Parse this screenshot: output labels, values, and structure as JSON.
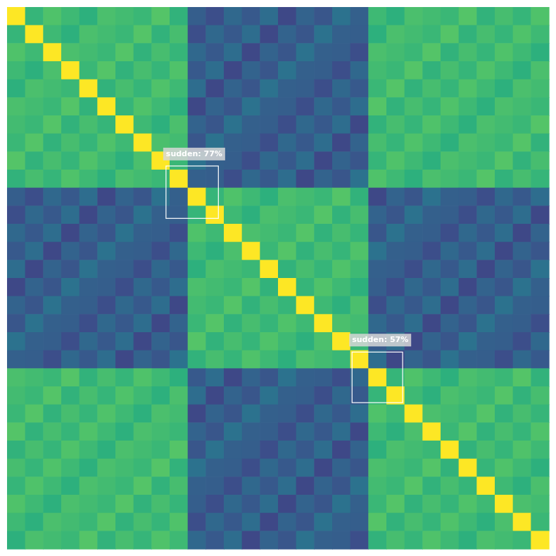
{
  "chart_data": {
    "type": "heatmap",
    "tick_labels": false,
    "color_range": [
      0,
      1
    ],
    "cells": [
      [
        1.0,
        0.66,
        0.72,
        0.68,
        0.64,
        0.71,
        0.69,
        0.67,
        0.73,
        0.65,
        0.3,
        0.24,
        0.34,
        0.28,
        0.36,
        0.22,
        0.32,
        0.27,
        0.38,
        0.31,
        0.68,
        0.64,
        0.71,
        0.69,
        0.67,
        0.73,
        0.65,
        0.7,
        0.66,
        0.72
      ],
      [
        0.66,
        1.0,
        0.68,
        0.64,
        0.71,
        0.69,
        0.67,
        0.73,
        0.65,
        0.7,
        0.24,
        0.34,
        0.28,
        0.36,
        0.22,
        0.32,
        0.27,
        0.38,
        0.31,
        0.3,
        0.64,
        0.71,
        0.69,
        0.67,
        0.73,
        0.65,
        0.7,
        0.66,
        0.72,
        0.68
      ],
      [
        0.72,
        0.68,
        1.0,
        0.71,
        0.69,
        0.67,
        0.73,
        0.65,
        0.7,
        0.66,
        0.34,
        0.28,
        0.36,
        0.22,
        0.32,
        0.27,
        0.38,
        0.31,
        0.3,
        0.24,
        0.71,
        0.69,
        0.67,
        0.73,
        0.65,
        0.7,
        0.66,
        0.72,
        0.68,
        0.64
      ],
      [
        0.68,
        0.64,
        0.71,
        1.0,
        0.67,
        0.73,
        0.65,
        0.7,
        0.66,
        0.72,
        0.28,
        0.36,
        0.22,
        0.32,
        0.27,
        0.38,
        0.31,
        0.3,
        0.24,
        0.34,
        0.69,
        0.67,
        0.73,
        0.65,
        0.7,
        0.66,
        0.72,
        0.68,
        0.64,
        0.71
      ],
      [
        0.64,
        0.71,
        0.69,
        0.67,
        1.0,
        0.65,
        0.7,
        0.66,
        0.72,
        0.68,
        0.36,
        0.22,
        0.32,
        0.27,
        0.38,
        0.31,
        0.3,
        0.24,
        0.34,
        0.28,
        0.67,
        0.73,
        0.65,
        0.7,
        0.66,
        0.72,
        0.68,
        0.64,
        0.71,
        0.69
      ],
      [
        0.71,
        0.69,
        0.67,
        0.73,
        0.65,
        1.0,
        0.66,
        0.72,
        0.68,
        0.64,
        0.22,
        0.32,
        0.27,
        0.38,
        0.31,
        0.3,
        0.24,
        0.34,
        0.28,
        0.36,
        0.73,
        0.65,
        0.7,
        0.66,
        0.72,
        0.68,
        0.64,
        0.71,
        0.69,
        0.67
      ],
      [
        0.69,
        0.67,
        0.73,
        0.65,
        0.7,
        0.66,
        1.0,
        0.68,
        0.64,
        0.71,
        0.32,
        0.27,
        0.38,
        0.31,
        0.3,
        0.24,
        0.34,
        0.28,
        0.36,
        0.22,
        0.65,
        0.7,
        0.66,
        0.72,
        0.68,
        0.64,
        0.71,
        0.69,
        0.67,
        0.73
      ],
      [
        0.67,
        0.73,
        0.65,
        0.7,
        0.66,
        0.72,
        0.68,
        1.0,
        0.71,
        0.69,
        0.27,
        0.38,
        0.31,
        0.3,
        0.24,
        0.34,
        0.28,
        0.36,
        0.22,
        0.32,
        0.7,
        0.66,
        0.72,
        0.68,
        0.64,
        0.71,
        0.69,
        0.67,
        0.73,
        0.65
      ],
      [
        0.73,
        0.65,
        0.7,
        0.66,
        0.72,
        0.68,
        0.64,
        0.71,
        1.0,
        0.67,
        0.38,
        0.31,
        0.3,
        0.24,
        0.34,
        0.28,
        0.36,
        0.22,
        0.32,
        0.27,
        0.66,
        0.72,
        0.68,
        0.64,
        0.71,
        0.69,
        0.67,
        0.73,
        0.65,
        0.7
      ],
      [
        0.65,
        0.7,
        0.66,
        0.72,
        0.68,
        0.64,
        0.71,
        0.69,
        0.67,
        1.0,
        0.31,
        0.3,
        0.24,
        0.34,
        0.28,
        0.36,
        0.22,
        0.32,
        0.27,
        0.38,
        0.72,
        0.68,
        0.64,
        0.71,
        0.69,
        0.67,
        0.73,
        0.65,
        0.7,
        0.66
      ],
      [
        0.3,
        0.24,
        0.34,
        0.28,
        0.36,
        0.22,
        0.32,
        0.27,
        0.38,
        0.31,
        1.0,
        0.66,
        0.72,
        0.68,
        0.64,
        0.71,
        0.69,
        0.67,
        0.73,
        0.65,
        0.22,
        0.32,
        0.27,
        0.38,
        0.31,
        0.3,
        0.24,
        0.34,
        0.28,
        0.36
      ],
      [
        0.24,
        0.34,
        0.28,
        0.36,
        0.22,
        0.32,
        0.27,
        0.38,
        0.31,
        0.3,
        0.66,
        1.0,
        0.68,
        0.64,
        0.71,
        0.69,
        0.67,
        0.73,
        0.65,
        0.7,
        0.32,
        0.27,
        0.38,
        0.31,
        0.3,
        0.24,
        0.34,
        0.28,
        0.36,
        0.22
      ],
      [
        0.34,
        0.28,
        0.36,
        0.22,
        0.32,
        0.27,
        0.38,
        0.31,
        0.3,
        0.24,
        0.72,
        0.68,
        1.0,
        0.71,
        0.69,
        0.67,
        0.73,
        0.65,
        0.7,
        0.66,
        0.27,
        0.38,
        0.31,
        0.3,
        0.24,
        0.34,
        0.28,
        0.36,
        0.22,
        0.32
      ],
      [
        0.28,
        0.36,
        0.22,
        0.32,
        0.27,
        0.38,
        0.31,
        0.3,
        0.24,
        0.34,
        0.68,
        0.64,
        0.71,
        1.0,
        0.67,
        0.73,
        0.65,
        0.7,
        0.66,
        0.72,
        0.38,
        0.31,
        0.3,
        0.24,
        0.34,
        0.28,
        0.36,
        0.22,
        0.32,
        0.27
      ],
      [
        0.36,
        0.22,
        0.32,
        0.27,
        0.38,
        0.31,
        0.3,
        0.24,
        0.34,
        0.28,
        0.64,
        0.71,
        0.69,
        0.67,
        1.0,
        0.65,
        0.7,
        0.66,
        0.72,
        0.68,
        0.31,
        0.3,
        0.24,
        0.34,
        0.28,
        0.36,
        0.22,
        0.32,
        0.27,
        0.38
      ],
      [
        0.22,
        0.32,
        0.27,
        0.38,
        0.31,
        0.3,
        0.24,
        0.34,
        0.28,
        0.36,
        0.71,
        0.69,
        0.67,
        0.73,
        0.65,
        1.0,
        0.66,
        0.72,
        0.68,
        0.64,
        0.3,
        0.24,
        0.34,
        0.28,
        0.36,
        0.22,
        0.32,
        0.27,
        0.38,
        0.31
      ],
      [
        0.32,
        0.27,
        0.38,
        0.31,
        0.3,
        0.24,
        0.34,
        0.28,
        0.36,
        0.22,
        0.69,
        0.67,
        0.73,
        0.65,
        0.7,
        0.66,
        1.0,
        0.68,
        0.64,
        0.71,
        0.24,
        0.34,
        0.28,
        0.36,
        0.22,
        0.32,
        0.27,
        0.38,
        0.31,
        0.3
      ],
      [
        0.27,
        0.38,
        0.31,
        0.3,
        0.24,
        0.34,
        0.28,
        0.36,
        0.22,
        0.32,
        0.67,
        0.73,
        0.65,
        0.7,
        0.66,
        0.72,
        0.68,
        1.0,
        0.71,
        0.69,
        0.34,
        0.28,
        0.36,
        0.22,
        0.32,
        0.27,
        0.38,
        0.31,
        0.3,
        0.24
      ],
      [
        0.38,
        0.31,
        0.3,
        0.24,
        0.34,
        0.28,
        0.36,
        0.22,
        0.32,
        0.27,
        0.73,
        0.65,
        0.7,
        0.66,
        0.72,
        0.68,
        0.64,
        0.71,
        1.0,
        0.67,
        0.28,
        0.36,
        0.22,
        0.32,
        0.27,
        0.38,
        0.31,
        0.3,
        0.24,
        0.34
      ],
      [
        0.31,
        0.3,
        0.24,
        0.34,
        0.28,
        0.36,
        0.22,
        0.32,
        0.27,
        0.38,
        0.65,
        0.7,
        0.66,
        0.72,
        0.68,
        0.64,
        0.71,
        0.69,
        0.67,
        1.0,
        0.36,
        0.22,
        0.32,
        0.27,
        0.38,
        0.31,
        0.3,
        0.24,
        0.34,
        0.28
      ],
      [
        0.71,
        0.69,
        0.67,
        0.73,
        0.65,
        0.7,
        0.66,
        0.72,
        0.68,
        0.64,
        0.28,
        0.36,
        0.22,
        0.32,
        0.27,
        0.38,
        0.31,
        0.3,
        0.24,
        0.34,
        1.0,
        0.66,
        0.72,
        0.68,
        0.64,
        0.71,
        0.69,
        0.67,
        0.73,
        0.65
      ],
      [
        0.69,
        0.67,
        0.73,
        0.65,
        0.7,
        0.66,
        0.72,
        0.68,
        0.64,
        0.71,
        0.36,
        0.22,
        0.32,
        0.27,
        0.38,
        0.31,
        0.3,
        0.24,
        0.34,
        0.28,
        0.66,
        1.0,
        0.68,
        0.64,
        0.71,
        0.69,
        0.67,
        0.73,
        0.65,
        0.7
      ],
      [
        0.67,
        0.73,
        0.65,
        0.7,
        0.66,
        0.72,
        0.68,
        0.64,
        0.71,
        0.69,
        0.22,
        0.32,
        0.27,
        0.38,
        0.31,
        0.3,
        0.24,
        0.34,
        0.28,
        0.36,
        0.72,
        0.68,
        1.0,
        0.71,
        0.69,
        0.67,
        0.73,
        0.65,
        0.7,
        0.66
      ],
      [
        0.73,
        0.65,
        0.7,
        0.66,
        0.72,
        0.68,
        0.64,
        0.71,
        0.69,
        0.67,
        0.32,
        0.27,
        0.38,
        0.31,
        0.3,
        0.24,
        0.34,
        0.28,
        0.36,
        0.22,
        0.68,
        0.64,
        0.71,
        1.0,
        0.67,
        0.73,
        0.65,
        0.7,
        0.66,
        0.72
      ],
      [
        0.65,
        0.7,
        0.66,
        0.72,
        0.68,
        0.64,
        0.71,
        0.69,
        0.67,
        0.73,
        0.27,
        0.38,
        0.31,
        0.3,
        0.24,
        0.34,
        0.28,
        0.36,
        0.22,
        0.32,
        0.64,
        0.71,
        0.69,
        0.67,
        1.0,
        0.65,
        0.7,
        0.66,
        0.72,
        0.68
      ],
      [
        0.7,
        0.66,
        0.72,
        0.68,
        0.64,
        0.71,
        0.69,
        0.67,
        0.73,
        0.65,
        0.38,
        0.31,
        0.3,
        0.24,
        0.34,
        0.28,
        0.36,
        0.22,
        0.32,
        0.27,
        0.71,
        0.69,
        0.67,
        0.73,
        0.65,
        1.0,
        0.66,
        0.72,
        0.68,
        0.64
      ],
      [
        0.66,
        0.72,
        0.68,
        0.64,
        0.71,
        0.69,
        0.67,
        0.73,
        0.65,
        0.7,
        0.31,
        0.3,
        0.24,
        0.34,
        0.28,
        0.36,
        0.22,
        0.32,
        0.27,
        0.38,
        0.69,
        0.67,
        0.73,
        0.65,
        0.7,
        0.66,
        1.0,
        0.68,
        0.64,
        0.71
      ],
      [
        0.72,
        0.68,
        0.64,
        0.71,
        0.69,
        0.67,
        0.73,
        0.65,
        0.7,
        0.66,
        0.3,
        0.24,
        0.34,
        0.28,
        0.36,
        0.22,
        0.32,
        0.27,
        0.38,
        0.31,
        0.67,
        0.73,
        0.65,
        0.7,
        0.66,
        0.72,
        0.68,
        1.0,
        0.71,
        0.69
      ],
      [
        0.68,
        0.64,
        0.71,
        0.69,
        0.67,
        0.73,
        0.65,
        0.7,
        0.66,
        0.72,
        0.24,
        0.34,
        0.28,
        0.36,
        0.22,
        0.32,
        0.27,
        0.38,
        0.31,
        0.3,
        0.73,
        0.65,
        0.7,
        0.66,
        0.72,
        0.68,
        0.64,
        0.71,
        1.0,
        0.67
      ],
      [
        0.64,
        0.71,
        0.69,
        0.67,
        0.73,
        0.65,
        0.7,
        0.66,
        0.72,
        0.68,
        0.34,
        0.28,
        0.36,
        0.22,
        0.32,
        0.27,
        0.38,
        0.31,
        0.3,
        0.24,
        0.65,
        0.7,
        0.66,
        0.72,
        0.68,
        0.64,
        0.71,
        0.69,
        0.67,
        1.0
      ]
    ],
    "boxes": [
      {
        "label": "sudden: 77%",
        "x": [
          8.8,
          11.7
        ],
        "y": [
          8.8,
          11.7
        ]
      },
      {
        "label": "sudden: 57%",
        "x": [
          19.1,
          21.9
        ],
        "y": [
          19.1,
          21.9
        ]
      }
    ]
  }
}
